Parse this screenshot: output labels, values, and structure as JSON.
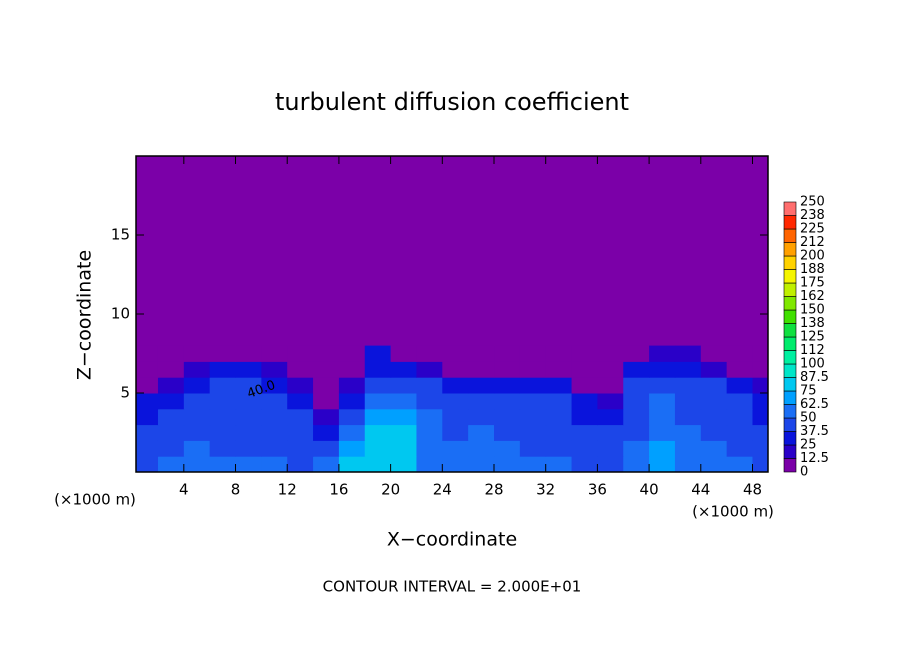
{
  "chart_data": {
    "type": "contour",
    "title": "turbulent diffusion coefficient",
    "x_label": "X−coordinate",
    "y_label": "Z−coordinate",
    "x_unit": "(×1000 m)",
    "x_unit_right": "(×1000 m)",
    "footer": "CONTOUR INTERVAL = 2.000E+01",
    "annotation": "40.0",
    "xlim": [
      0.3,
      49.2
    ],
    "ylim": [
      0,
      20
    ],
    "xticks": [
      4,
      8,
      12,
      16,
      20,
      24,
      28,
      32,
      36,
      40,
      44,
      48
    ],
    "yticks": [
      5,
      10,
      15
    ],
    "x": [
      1,
      3,
      5,
      7,
      9,
      11,
      13,
      15,
      17,
      19,
      21,
      23,
      25,
      27,
      29,
      31,
      33,
      35,
      37,
      39,
      41,
      43,
      45,
      47,
      49
    ],
    "y": [
      0.5,
      1.5,
      2.5,
      3.5,
      4.5,
      5.5,
      6.5,
      7.5
    ],
    "z": [
      [
        45,
        50,
        60,
        55,
        50,
        50,
        45,
        55,
        75,
        80,
        80,
        55,
        50,
        60,
        55,
        50,
        50,
        45,
        45,
        55,
        70,
        60,
        55,
        50,
        45
      ],
      [
        40,
        45,
        50,
        45,
        45,
        45,
        40,
        40,
        70,
        80,
        75,
        55,
        50,
        55,
        50,
        45,
        45,
        40,
        40,
        50,
        65,
        55,
        50,
        45,
        40
      ],
      [
        40,
        45,
        45,
        45,
        45,
        45,
        40,
        30,
        50,
        75,
        75,
        50,
        45,
        50,
        45,
        45,
        45,
        40,
        40,
        45,
        60,
        50,
        45,
        45,
        40
      ],
      [
        35,
        40,
        45,
        45,
        45,
        45,
        40,
        20,
        40,
        65,
        70,
        50,
        45,
        45,
        45,
        40,
        45,
        35,
        30,
        45,
        55,
        45,
        45,
        40,
        35
      ],
      [
        30,
        35,
        45,
        45,
        40,
        40,
        35,
        10,
        25,
        50,
        60,
        45,
        40,
        45,
        40,
        40,
        40,
        25,
        20,
        45,
        50,
        45,
        45,
        40,
        30
      ],
      [
        5,
        20,
        35,
        40,
        40,
        35,
        20,
        5,
        15,
        40,
        45,
        40,
        35,
        35,
        30,
        30,
        30,
        10,
        10,
        40,
        45,
        40,
        40,
        30,
        20
      ],
      [
        5,
        5,
        20,
        30,
        25,
        20,
        5,
        5,
        5,
        35,
        30,
        15,
        10,
        10,
        10,
        5,
        5,
        5,
        5,
        30,
        35,
        35,
        20,
        10,
        5
      ],
      [
        5,
        5,
        5,
        5,
        5,
        5,
        5,
        5,
        5,
        30,
        5,
        5,
        5,
        5,
        5,
        5,
        5,
        5,
        5,
        10,
        20,
        15,
        5,
        5,
        5
      ]
    ],
    "levels": [
      0,
      12.5,
      25,
      37.5,
      50,
      62.5,
      75,
      87.5,
      100,
      {
        "value": 112.5,
        "label": "112"
      },
      125,
      {
        "value": 137.5,
        "label": "138"
      },
      150,
      {
        "value": 162.5,
        "label": "162"
      },
      175,
      {
        "value": 187.5,
        "label": "188"
      },
      200,
      {
        "value": 212.5,
        "label": "212"
      },
      225,
      {
        "value": 237.5,
        "label": "238"
      },
      250
    ],
    "colors": [
      "#7b00a8",
      "#2a00c8",
      "#0a14dc",
      "#1c46e8",
      "#1a6ef5",
      "#00a0ff",
      "#00c8f0",
      "#00e6c8",
      "#00f0a0",
      "#00ec6c",
      "#10e040",
      "#40e000",
      "#80e800",
      "#c0f000",
      "#f5f500",
      "#ffd200",
      "#ffa000",
      "#ff6400",
      "#ff2800",
      "#ff6e6e"
    ]
  }
}
